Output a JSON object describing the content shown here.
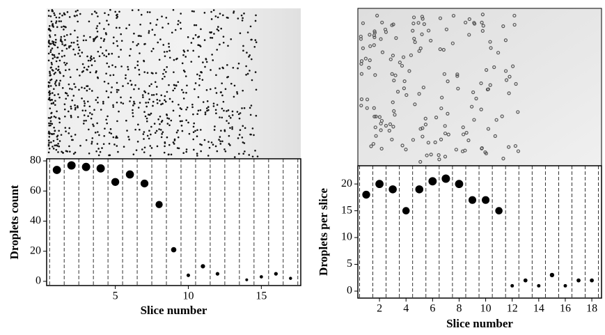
{
  "chart_data": [
    {
      "type": "scatter",
      "xlabel": "Slice number",
      "ylabel": "Droplets count",
      "x": [
        1,
        2,
        3,
        4,
        5,
        6,
        7,
        8,
        9,
        10,
        11,
        12,
        14,
        15,
        16,
        17
      ],
      "values": [
        74,
        77,
        76,
        75,
        66,
        71,
        65,
        51,
        21,
        4,
        10,
        5,
        1,
        3,
        5,
        2
      ],
      "color": "#000000",
      "xlim": [
        0.3,
        17.7
      ],
      "xticks": [
        5,
        10,
        15
      ],
      "ylim": [
        -2.8,
        81.4
      ],
      "yticks": [
        0,
        20,
        40,
        60,
        80
      ]
    },
    {
      "type": "scatter",
      "xlabel": "Slice number",
      "ylabel": "Droplets per slice",
      "x": [
        1,
        2,
        3,
        4,
        5,
        6,
        7,
        8,
        9,
        10,
        11,
        12,
        13,
        14,
        15,
        16,
        17,
        18
      ],
      "values": [
        18,
        20,
        19,
        15,
        19,
        20.5,
        21,
        20,
        17,
        17,
        15,
        1,
        2,
        1,
        3,
        1,
        2,
        2
      ],
      "color": "#000000",
      "xlim": [
        0.37,
        18.73
      ],
      "xticks": [
        2,
        4,
        6,
        8,
        10,
        12,
        14,
        16,
        18
      ],
      "ylim": [
        -1.3,
        23.4
      ],
      "yticks": [
        0,
        5,
        10,
        15,
        20
      ]
    }
  ]
}
